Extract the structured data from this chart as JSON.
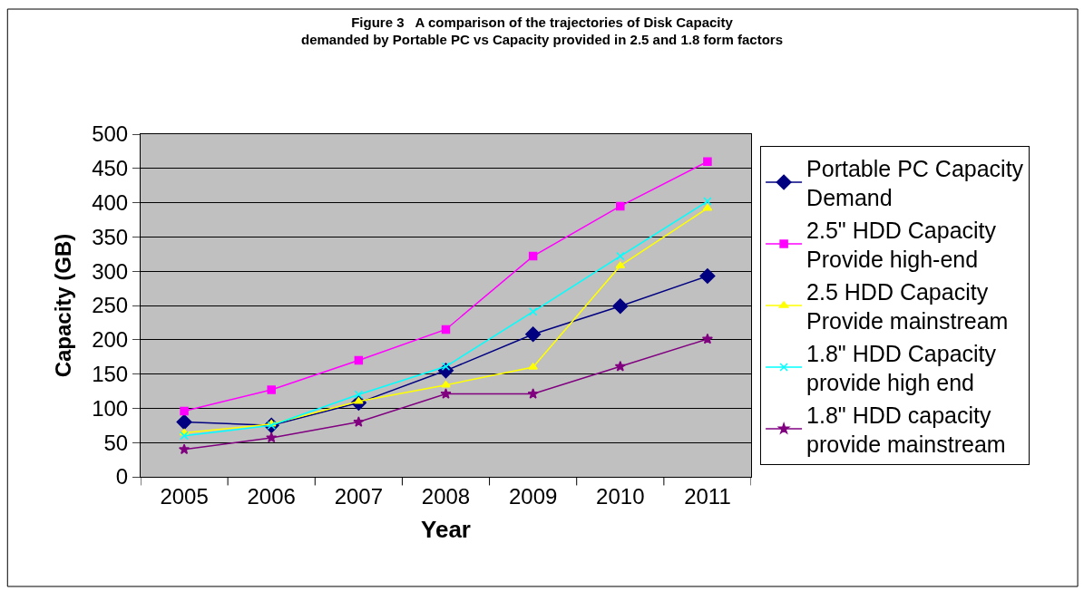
{
  "chart_data": {
    "type": "line",
    "title": "Figure 3   A comparison of the trajectories of Disk Capacity\ndemanded by Portable PC vs Capacity provided in 2.5 and 1.8 form factors",
    "xlabel": "Year",
    "ylabel": "Capacity (GB)",
    "categories": [
      "2005",
      "2006",
      "2007",
      "2008",
      "2009",
      "2010",
      "2011"
    ],
    "series": [
      {
        "name": "Portable PC Capacity\nDemand",
        "color": "#000080",
        "marker": "diamond",
        "values": [
          80,
          75,
          108,
          155,
          208,
          249,
          293
        ]
      },
      {
        "name": "2.5\" HDD Capacity\nProvide high-end",
        "color": "#ff00ff",
        "marker": "square",
        "values": [
          96,
          127,
          170,
          215,
          322,
          395,
          460
        ]
      },
      {
        "name": "2.5 HDD Capacity\nProvide mainstream",
        "color": "#ffff00",
        "marker": "triangle",
        "values": [
          64,
          77,
          110,
          134,
          160,
          308,
          392
        ]
      },
      {
        "name": "1.8\" HDD Capacity\nprovide high end",
        "color": "#00ffff",
        "marker": "cross",
        "values": [
          60,
          75,
          120,
          161,
          241,
          322,
          402
        ]
      },
      {
        "name": "1.8\" HDD capacity\nprovide mainstream",
        "color": "#800080",
        "marker": "star",
        "values": [
          40,
          57,
          80,
          121,
          121,
          161,
          201
        ]
      }
    ],
    "ylim": [
      0,
      500
    ],
    "yticks": [
      0,
      50,
      100,
      150,
      200,
      250,
      300,
      350,
      400,
      450,
      500
    ],
    "grid": "y",
    "legend": "right"
  }
}
